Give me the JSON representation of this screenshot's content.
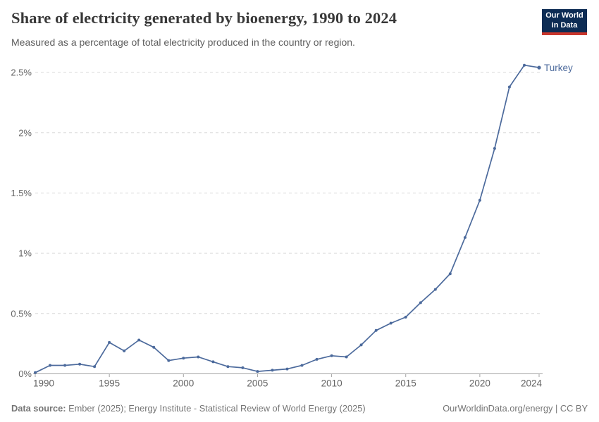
{
  "header": {
    "title": "Share of electricity generated by bioenergy, 1990 to 2024",
    "subtitle": "Measured as a percentage of total electricity produced in the country or region.",
    "logo": {
      "line1": "Our World",
      "line2": "in Data"
    }
  },
  "chart_data": {
    "type": "line",
    "title": "Share of electricity generated by bioenergy, 1990 to 2024",
    "xlabel": "",
    "ylabel": "",
    "x_range": [
      1990,
      2024
    ],
    "ylim": [
      0,
      2.5
    ],
    "grid": "horizontal-dashed",
    "legend_position": "end-of-line-label",
    "x_ticks": [
      1990,
      1995,
      2000,
      2005,
      2010,
      2015,
      2020,
      2024
    ],
    "y_ticks": [
      {
        "value": 0,
        "label": "0%"
      },
      {
        "value": 0.5,
        "label": "0.5%"
      },
      {
        "value": 1,
        "label": "1%"
      },
      {
        "value": 1.5,
        "label": "1.5%"
      },
      {
        "value": 2,
        "label": "2%"
      },
      {
        "value": 2.5,
        "label": "2.5%"
      }
    ],
    "series": [
      {
        "name": "Turkey",
        "color": "#4C6A9C",
        "x": [
          1990,
          1991,
          1992,
          1993,
          1994,
          1995,
          1996,
          1997,
          1998,
          1999,
          2000,
          2001,
          2002,
          2003,
          2004,
          2005,
          2006,
          2007,
          2008,
          2009,
          2010,
          2011,
          2012,
          2013,
          2014,
          2015,
          2016,
          2017,
          2018,
          2019,
          2020,
          2021,
          2022,
          2023,
          2024
        ],
        "values": [
          0.01,
          0.07,
          0.07,
          0.08,
          0.06,
          0.26,
          0.19,
          0.28,
          0.22,
          0.11,
          0.13,
          0.14,
          0.1,
          0.06,
          0.05,
          0.02,
          0.03,
          0.04,
          0.07,
          0.12,
          0.15,
          0.14,
          0.24,
          0.36,
          0.42,
          0.47,
          0.59,
          0.7,
          0.83,
          1.13,
          1.44,
          1.87,
          2.38,
          2.56,
          2.54
        ]
      }
    ],
    "end_label": "Turkey"
  },
  "footer": {
    "datasource_label": "Data source:",
    "datasource_text": " Ember (2025); Energy Institute - Statistical Review of World Energy (2025)",
    "credit": "OurWorldinData.org/energy | CC BY"
  },
  "colors": {
    "series": "#4C6A9C",
    "grid": "#dadada",
    "axis": "#a5a5a5",
    "tick_label": "#636363",
    "logo_bg": "#0d2c54",
    "logo_stripe": "#c9362c"
  }
}
